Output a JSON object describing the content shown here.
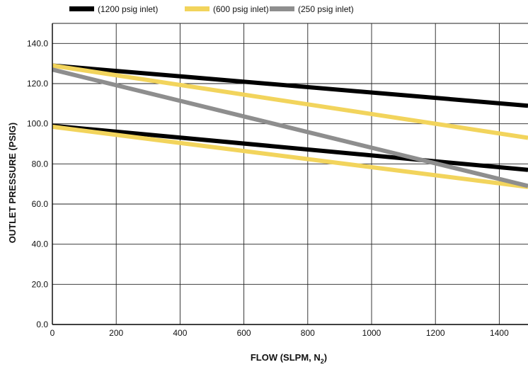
{
  "chart_data": {
    "type": "line",
    "xlabel": "FLOW (SLPM, N",
    "xlabel_subscript": "2",
    "xlabel_close": ")",
    "ylabel": "OUTLET PRESSURE (PSIG)",
    "xlim": [
      0,
      1490
    ],
    "ylim": [
      0,
      150
    ],
    "x_ticks": [
      0,
      200,
      400,
      600,
      800,
      1000,
      1200,
      1400
    ],
    "x_tick_labels": [
      "0",
      "200",
      "400",
      "600",
      "800",
      "1000",
      "1200",
      "1400"
    ],
    "y_ticks": [
      0,
      20,
      40,
      60,
      80,
      100,
      120,
      140
    ],
    "y_tick_labels": [
      "0.0",
      "20.0",
      "40.0",
      "60.0",
      "80.0",
      "100.0",
      "120.0",
      "140.0"
    ],
    "grid": true,
    "legend_position": "top",
    "series": [
      {
        "name": "(1200 psig inlet)",
        "color": "#000000",
        "lines": [
          {
            "x": [
              0,
              1490
            ],
            "y": [
              129,
              109
            ]
          },
          {
            "x": [
              0,
              1490
            ],
            "y": [
              99,
              77
            ]
          }
        ]
      },
      {
        "name": "(600 psig inlet)",
        "color": "#f2d45c",
        "lines": [
          {
            "x": [
              0,
              1490
            ],
            "y": [
              129,
              93
            ]
          },
          {
            "x": [
              0,
              1490
            ],
            "y": [
              98.5,
              68.5
            ]
          }
        ]
      },
      {
        "name": "(250 psig inlet)",
        "color": "#8e8e8e",
        "lines": [
          {
            "x": [
              0,
              1490
            ],
            "y": [
              127,
              69
            ]
          }
        ]
      }
    ]
  }
}
